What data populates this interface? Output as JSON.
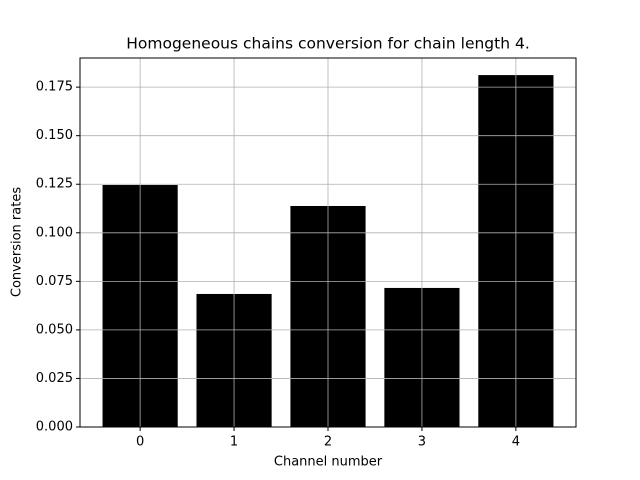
{
  "chart_data": {
    "type": "bar",
    "title": "Homogeneous chains conversion for chain length 4.",
    "x_label": "Channel number",
    "y_label": "Conversion rates",
    "x": [
      0,
      1,
      2,
      3,
      4
    ],
    "values": [
      0.1246,
      0.0685,
      0.1138,
      0.0716,
      0.1812
    ],
    "color": "#000000",
    "xlim": [
      -0.64,
      4.64
    ],
    "xticks": [
      0,
      1,
      2,
      3,
      4
    ],
    "ylim": [
      0,
      0.19
    ],
    "yticks": [
      {
        "value": 0,
        "label": "0.000"
      },
      {
        "value": 0.025,
        "label": "0.025"
      },
      {
        "value": 0.05,
        "label": "0.050"
      },
      {
        "value": 0.075,
        "label": "0.075"
      },
      {
        "value": 0.1,
        "label": "0.100"
      },
      {
        "value": 0.125,
        "label": "0.125"
      },
      {
        "value": 0.15,
        "label": "0.150"
      },
      {
        "value": 0.175,
        "label": "0.175"
      }
    ],
    "grid": true
  }
}
